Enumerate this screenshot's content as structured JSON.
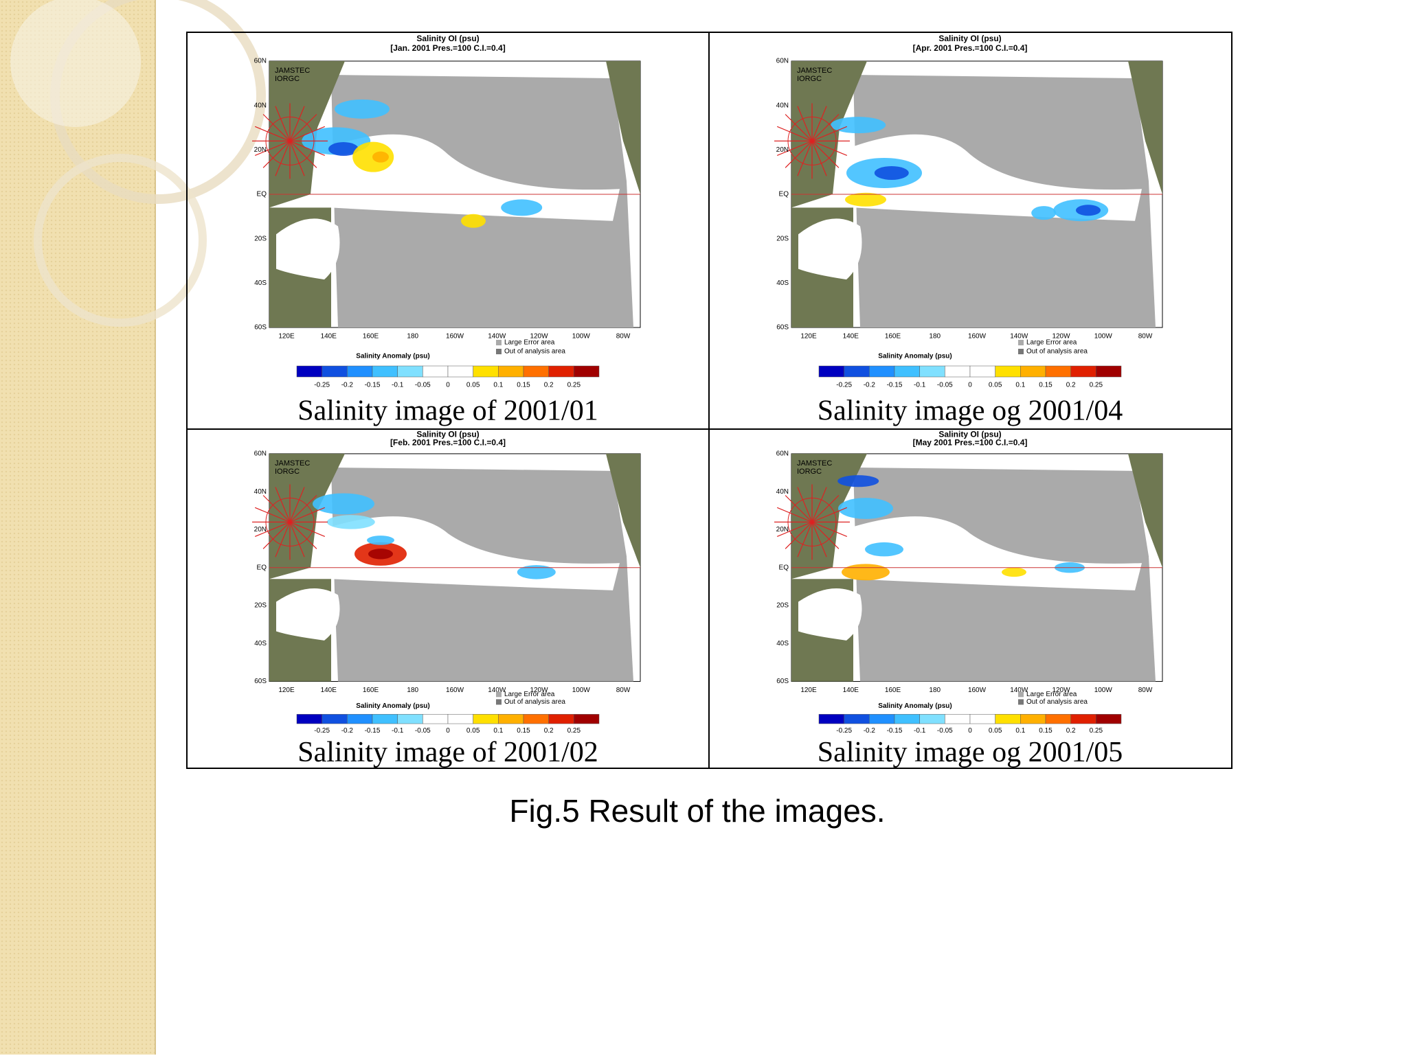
{
  "panels": [
    {
      "title": "Salinity OI (psu)",
      "subtitle": "[Jan. 2001 Pres.=100 C.I.=0.4]",
      "org": [
        "JAMSTEC",
        "IORGC"
      ],
      "caption": "Salinity image of 2001/01"
    },
    {
      "title": "Salinity OI (psu)",
      "subtitle": "[Apr. 2001 Pres.=100 C.I.=0.4]",
      "org": [
        "JAMSTEC",
        "IORGC"
      ],
      "caption": "Salinity image og 2001/04"
    },
    {
      "title": "Salinity OI (psu)",
      "subtitle": "[Feb. 2001 Pres.=100 C.I.=0.4]",
      "org": [
        "JAMSTEC",
        "IORGC"
      ],
      "caption": "Salinity image of 2001/02"
    },
    {
      "title": "Salinity OI (psu)",
      "subtitle": "[May 2001 Pres.=100 C.I.=0.4]",
      "org": [
        "JAMSTEC",
        "IORGC"
      ],
      "caption": "Salinity image og 2001/05"
    }
  ],
  "map_axes": {
    "lat": [
      "60N",
      "40N",
      "20N",
      "EQ",
      "20S",
      "40S",
      "60S"
    ],
    "lon": [
      "120E",
      "140E",
      "160E",
      "180",
      "160W",
      "140W",
      "120W",
      "100W",
      "80W"
    ]
  },
  "legend": [
    "Large Error area",
    "Out of analysis area"
  ],
  "colorbar": {
    "title": "Salinity Anomaly (psu)",
    "ticks": [
      "-0.25",
      "-0.2",
      "-0.15",
      "-0.1",
      "-0.05",
      "0",
      "0.05",
      "0.1",
      "0.15",
      "0.2",
      "0.25"
    ]
  },
  "figure_caption": "Fig.5 Result of the images."
}
